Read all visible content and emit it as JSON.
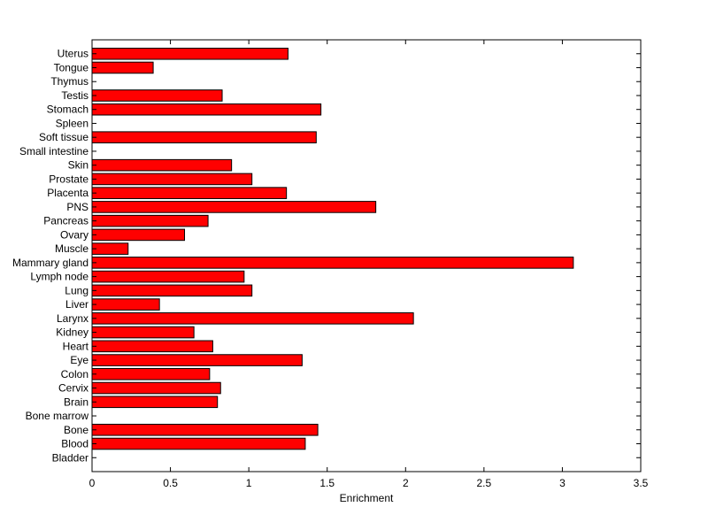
{
  "chart_data": {
    "type": "bar",
    "orientation": "horizontal",
    "title": "",
    "xlabel": "Enrichment",
    "ylabel": "",
    "xlim": [
      0,
      3.5
    ],
    "xticks": [
      0,
      0.5,
      1,
      1.5,
      2,
      2.5,
      3,
      3.5
    ],
    "xtick_labels": [
      "0",
      "0.5",
      "1",
      "1.5",
      "2",
      "2.5",
      "3",
      "3.5"
    ],
    "grid": false,
    "bar_color": "#ff0000",
    "categories": [
      "Bladder",
      "Blood",
      "Bone",
      "Bone marrow",
      "Brain",
      "Cervix",
      "Colon",
      "Eye",
      "Heart",
      "Kidney",
      "Larynx",
      "Liver",
      "Lung",
      "Lymph node",
      "Mammary gland",
      "Muscle",
      "Ovary",
      "Pancreas",
      "PNS",
      "Placenta",
      "Prostate",
      "Skin",
      "Small intestine",
      "Soft tissue",
      "Spleen",
      "Stomach",
      "Testis",
      "Thymus",
      "Tongue",
      "Uterus"
    ],
    "values": [
      0,
      1.36,
      1.44,
      0,
      0.8,
      0.82,
      0.75,
      1.34,
      0.77,
      0.65,
      2.05,
      0.43,
      1.02,
      0.97,
      3.07,
      0.23,
      0.59,
      0.74,
      1.81,
      1.24,
      1.02,
      0.89,
      0,
      1.43,
      0,
      1.46,
      0.83,
      0,
      0.39,
      1.25
    ]
  }
}
